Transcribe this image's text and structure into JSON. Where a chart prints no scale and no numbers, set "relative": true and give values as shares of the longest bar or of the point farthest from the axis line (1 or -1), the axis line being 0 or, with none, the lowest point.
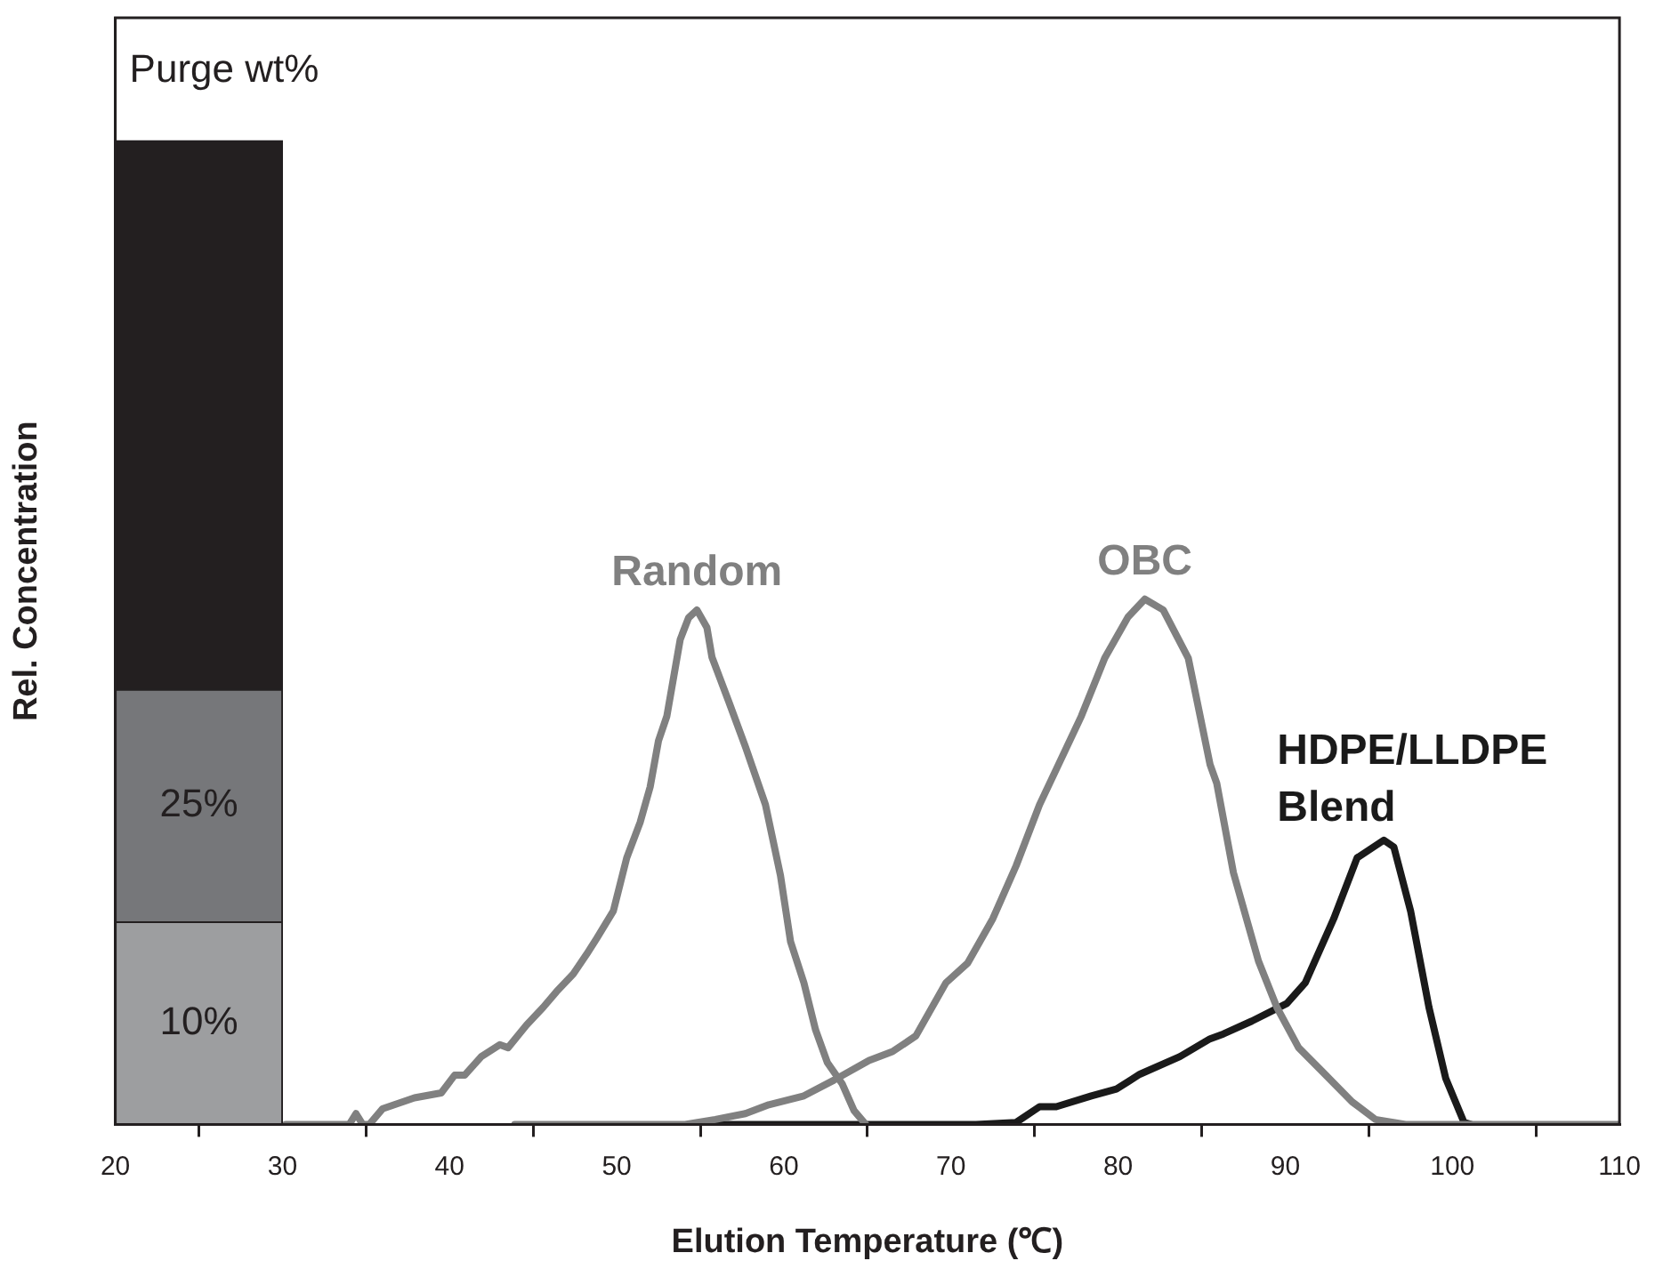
{
  "chart_data": {
    "type": "line",
    "xlabel": "Elution Temperature (℃)",
    "ylabel": "Rel. Concentration",
    "relative": true,
    "xlim": [
      20,
      110
    ],
    "xticks": [
      20,
      30,
      40,
      50,
      60,
      70,
      80,
      90,
      100,
      110
    ],
    "grid": false,
    "legend": false,
    "marker": "none",
    "line_style": "solid",
    "stacked": true,
    "annotations": [
      "Purge wt%",
      "25%",
      "10%"
    ],
    "series": [
      {
        "type": "bar",
        "x": [
          25
        ],
        "values": [
          0.206
        ],
        "color": "#9d9ea0"
      },
      {
        "type": "bar",
        "x": [
          25
        ],
        "values": [
          0.236
        ],
        "color": "#76777a"
      },
      {
        "type": "bar",
        "x": [
          25
        ],
        "values": [
          0.558
        ],
        "color": "#231f20"
      },
      {
        "name": "Random",
        "color": "#808080",
        "x": [
          30.2,
          34.0,
          34.4,
          34.8,
          35.2,
          36.0,
          37.9,
          39.5,
          40.3,
          40.9,
          41.9,
          43.0,
          43.5,
          44.6,
          45.6,
          46.4,
          47.4,
          48.2,
          48.8,
          49.8,
          50.6,
          51.4,
          52.0,
          52.5,
          53.0,
          53.8,
          54.3,
          54.8,
          55.4,
          55.7,
          56.7,
          57.7,
          58.9,
          59.8,
          60.4,
          61.2,
          61.9,
          62.6,
          63.5,
          64.2,
          64.9
        ],
        "values": [
          0,
          0,
          0.011,
          0,
          0,
          0.016,
          0.027,
          0.032,
          0.05,
          0.05,
          0.069,
          0.081,
          0.078,
          0.101,
          0.119,
          0.135,
          0.153,
          0.173,
          0.189,
          0.217,
          0.271,
          0.307,
          0.343,
          0.39,
          0.415,
          0.493,
          0.515,
          0.523,
          0.505,
          0.475,
          0.43,
          0.384,
          0.325,
          0.253,
          0.186,
          0.144,
          0.096,
          0.063,
          0.041,
          0.014,
          0
        ]
      },
      {
        "name": "OBC",
        "color": "#808080",
        "x": [
          43.9,
          54.1,
          55.9,
          57.7,
          59.1,
          61.2,
          63.0,
          65.1,
          66.5,
          67.9,
          69.7,
          71.0,
          72.5,
          73.9,
          75.3,
          76.3,
          77.8,
          79.2,
          80.6,
          81.6,
          82.7,
          84.2,
          85.5,
          85.9,
          86.9,
          88.4,
          89.5,
          90.8,
          92.2,
          94.0,
          95.4,
          97.2,
          110
        ],
        "values": [
          0,
          0,
          0.005,
          0.011,
          0.02,
          0.029,
          0.045,
          0.065,
          0.074,
          0.09,
          0.144,
          0.164,
          0.209,
          0.263,
          0.325,
          0.361,
          0.415,
          0.474,
          0.516,
          0.534,
          0.523,
          0.474,
          0.366,
          0.347,
          0.256,
          0.166,
          0.119,
          0.078,
          0.054,
          0.023,
          0.005,
          0,
          0
        ]
      },
      {
        "name": "HDPE/LLDPE Blend",
        "color": "#1a1a1a",
        "x": [
          54.8,
          71.5,
          73.9,
          75.3,
          76.3,
          78.4,
          79.9,
          81.3,
          83.7,
          85.5,
          86.3,
          88.0,
          90.1,
          91.2,
          92.9,
          94.3,
          95.9,
          96.5,
          97.5,
          98.6,
          99.6,
          100.7,
          101.1
        ],
        "values": [
          0,
          0,
          0.002,
          0.018,
          0.018,
          0.029,
          0.036,
          0.051,
          0.069,
          0.087,
          0.092,
          0.105,
          0.123,
          0.144,
          0.209,
          0.271,
          0.289,
          0.282,
          0.217,
          0.119,
          0.047,
          0.002,
          0
        ]
      }
    ]
  }
}
